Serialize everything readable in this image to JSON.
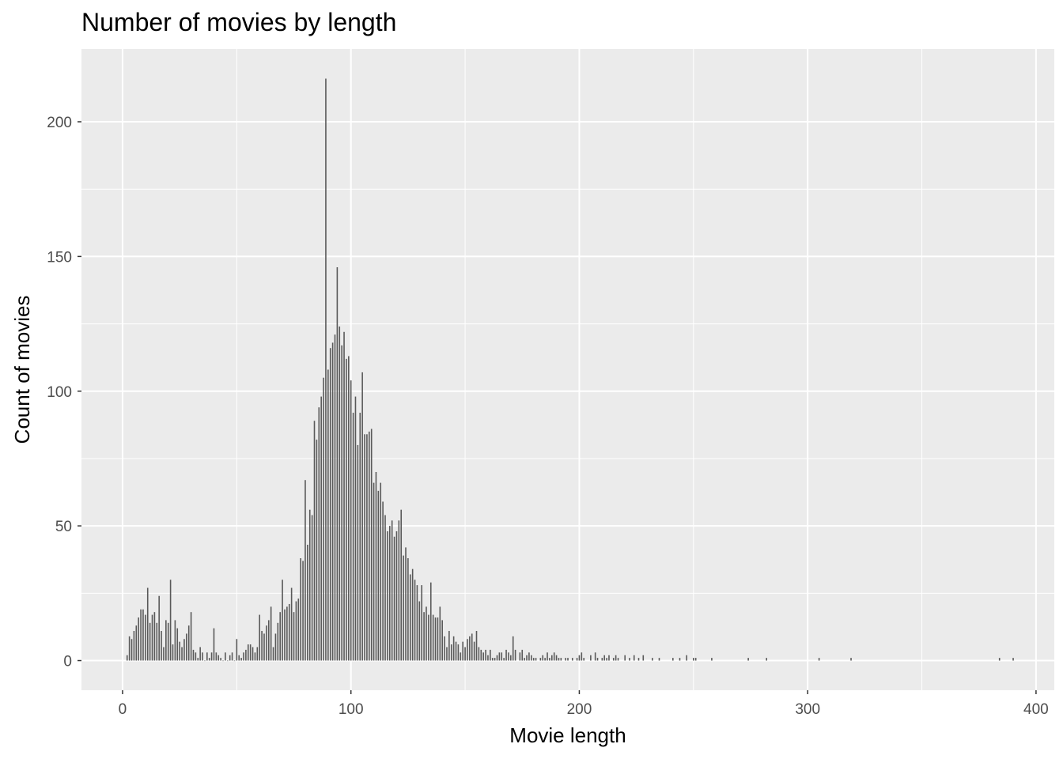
{
  "chart_data": {
    "type": "bar",
    "title": "Number of movies by length",
    "xlabel": "Movie length",
    "ylabel": "Count of movies",
    "xlim": [
      -18,
      408
    ],
    "ylim": [
      -11,
      227
    ],
    "x_ticks": [
      0,
      100,
      200,
      300,
      400
    ],
    "y_ticks": [
      0,
      50,
      100,
      150,
      200
    ],
    "grid": true,
    "bar_color": "#595959",
    "panel_color": "#ebebeb",
    "gridline_color": "#ffffff",
    "bars": [
      [
        2,
        2
      ],
      [
        3,
        9
      ],
      [
        4,
        8
      ],
      [
        5,
        11
      ],
      [
        6,
        13
      ],
      [
        7,
        16
      ],
      [
        8,
        19
      ],
      [
        9,
        19
      ],
      [
        10,
        17
      ],
      [
        11,
        27
      ],
      [
        12,
        14
      ],
      [
        13,
        17
      ],
      [
        14,
        18
      ],
      [
        15,
        14
      ],
      [
        16,
        24
      ],
      [
        17,
        11
      ],
      [
        18,
        5
      ],
      [
        19,
        15
      ],
      [
        20,
        14
      ],
      [
        21,
        30
      ],
      [
        22,
        6
      ],
      [
        23,
        15
      ],
      [
        24,
        12
      ],
      [
        25,
        7
      ],
      [
        26,
        5
      ],
      [
        27,
        8
      ],
      [
        28,
        10
      ],
      [
        29,
        13
      ],
      [
        30,
        18
      ],
      [
        31,
        4
      ],
      [
        32,
        3
      ],
      [
        33,
        1
      ],
      [
        34,
        5
      ],
      [
        35,
        3
      ],
      [
        36,
        0
      ],
      [
        37,
        3
      ],
      [
        38,
        1
      ],
      [
        39,
        3
      ],
      [
        40,
        12
      ],
      [
        41,
        3
      ],
      [
        42,
        2
      ],
      [
        43,
        1
      ],
      [
        44,
        0
      ],
      [
        45,
        3
      ],
      [
        46,
        0
      ],
      [
        47,
        2
      ],
      [
        48,
        3
      ],
      [
        49,
        0
      ],
      [
        50,
        8
      ],
      [
        51,
        2
      ],
      [
        52,
        1
      ],
      [
        53,
        3
      ],
      [
        54,
        4
      ],
      [
        55,
        6
      ],
      [
        56,
        6
      ],
      [
        57,
        5
      ],
      [
        58,
        3
      ],
      [
        59,
        5
      ],
      [
        60,
        17
      ],
      [
        61,
        11
      ],
      [
        62,
        10
      ],
      [
        63,
        13
      ],
      [
        64,
        15
      ],
      [
        65,
        20
      ],
      [
        66,
        5
      ],
      [
        67,
        10
      ],
      [
        68,
        14
      ],
      [
        69,
        18
      ],
      [
        70,
        30
      ],
      [
        71,
        19
      ],
      [
        72,
        20
      ],
      [
        73,
        21
      ],
      [
        74,
        27
      ],
      [
        75,
        18
      ],
      [
        76,
        22
      ],
      [
        77,
        23
      ],
      [
        78,
        38
      ],
      [
        79,
        37
      ],
      [
        80,
        67
      ],
      [
        81,
        43
      ],
      [
        82,
        56
      ],
      [
        83,
        54
      ],
      [
        84,
        89
      ],
      [
        85,
        82
      ],
      [
        86,
        94
      ],
      [
        87,
        98
      ],
      [
        88,
        105
      ],
      [
        89,
        216
      ],
      [
        90,
        108
      ],
      [
        91,
        116
      ],
      [
        92,
        118
      ],
      [
        93,
        121
      ],
      [
        94,
        146
      ],
      [
        95,
        124
      ],
      [
        96,
        117
      ],
      [
        97,
        122
      ],
      [
        98,
        112
      ],
      [
        99,
        113
      ],
      [
        100,
        104
      ],
      [
        101,
        92
      ],
      [
        102,
        98
      ],
      [
        103,
        80
      ],
      [
        104,
        92
      ],
      [
        105,
        107
      ],
      [
        106,
        84
      ],
      [
        107,
        84
      ],
      [
        108,
        85
      ],
      [
        109,
        86
      ],
      [
        110,
        66
      ],
      [
        111,
        70
      ],
      [
        112,
        63
      ],
      [
        113,
        66
      ],
      [
        114,
        59
      ],
      [
        115,
        54
      ],
      [
        116,
        48
      ],
      [
        117,
        50
      ],
      [
        118,
        52
      ],
      [
        119,
        46
      ],
      [
        120,
        48
      ],
      [
        121,
        52
      ],
      [
        122,
        56
      ],
      [
        123,
        39
      ],
      [
        124,
        42
      ],
      [
        125,
        38
      ],
      [
        126,
        32
      ],
      [
        127,
        34
      ],
      [
        128,
        30
      ],
      [
        129,
        28
      ],
      [
        130,
        22
      ],
      [
        131,
        28
      ],
      [
        132,
        18
      ],
      [
        133,
        20
      ],
      [
        134,
        17
      ],
      [
        135,
        29
      ],
      [
        136,
        17
      ],
      [
        137,
        16
      ],
      [
        138,
        16
      ],
      [
        139,
        20
      ],
      [
        140,
        15
      ],
      [
        141,
        9
      ],
      [
        142,
        5
      ],
      [
        143,
        11
      ],
      [
        144,
        6
      ],
      [
        145,
        9
      ],
      [
        146,
        7
      ],
      [
        147,
        6
      ],
      [
        148,
        3
      ],
      [
        149,
        7
      ],
      [
        150,
        5
      ],
      [
        151,
        8
      ],
      [
        152,
        9
      ],
      [
        153,
        10
      ],
      [
        154,
        7
      ],
      [
        155,
        11
      ],
      [
        156,
        5
      ],
      [
        157,
        4
      ],
      [
        158,
        3
      ],
      [
        159,
        4
      ],
      [
        160,
        2
      ],
      [
        161,
        4
      ],
      [
        162,
        1
      ],
      [
        163,
        1
      ],
      [
        164,
        2
      ],
      [
        165,
        3
      ],
      [
        166,
        3
      ],
      [
        167,
        1
      ],
      [
        168,
        4
      ],
      [
        169,
        3
      ],
      [
        170,
        2
      ],
      [
        171,
        9
      ],
      [
        172,
        4
      ],
      [
        174,
        3
      ],
      [
        175,
        4
      ],
      [
        176,
        1
      ],
      [
        177,
        2
      ],
      [
        178,
        3
      ],
      [
        179,
        2
      ],
      [
        180,
        1
      ],
      [
        181,
        1
      ],
      [
        183,
        1
      ],
      [
        184,
        2
      ],
      [
        185,
        1
      ],
      [
        186,
        3
      ],
      [
        187,
        1
      ],
      [
        188,
        2
      ],
      [
        189,
        3
      ],
      [
        190,
        2
      ],
      [
        191,
        1
      ],
      [
        192,
        1
      ],
      [
        194,
        1
      ],
      [
        195,
        1
      ],
      [
        197,
        1
      ],
      [
        199,
        1
      ],
      [
        200,
        2
      ],
      [
        201,
        3
      ],
      [
        202,
        1
      ],
      [
        205,
        2
      ],
      [
        207,
        3
      ],
      [
        208,
        1
      ],
      [
        210,
        1
      ],
      [
        211,
        2
      ],
      [
        212,
        1
      ],
      [
        213,
        2
      ],
      [
        215,
        1
      ],
      [
        216,
        2
      ],
      [
        217,
        1
      ],
      [
        220,
        2
      ],
      [
        222,
        1
      ],
      [
        224,
        2
      ],
      [
        226,
        1
      ],
      [
        228,
        2
      ],
      [
        232,
        1
      ],
      [
        235,
        1
      ],
      [
        241,
        1
      ],
      [
        244,
        1
      ],
      [
        247,
        2
      ],
      [
        250,
        1
      ],
      [
        251,
        1
      ],
      [
        258,
        1
      ],
      [
        274,
        1
      ],
      [
        282,
        1
      ],
      [
        305,
        1
      ],
      [
        319,
        1
      ],
      [
        384,
        1
      ],
      [
        390,
        1
      ]
    ]
  }
}
